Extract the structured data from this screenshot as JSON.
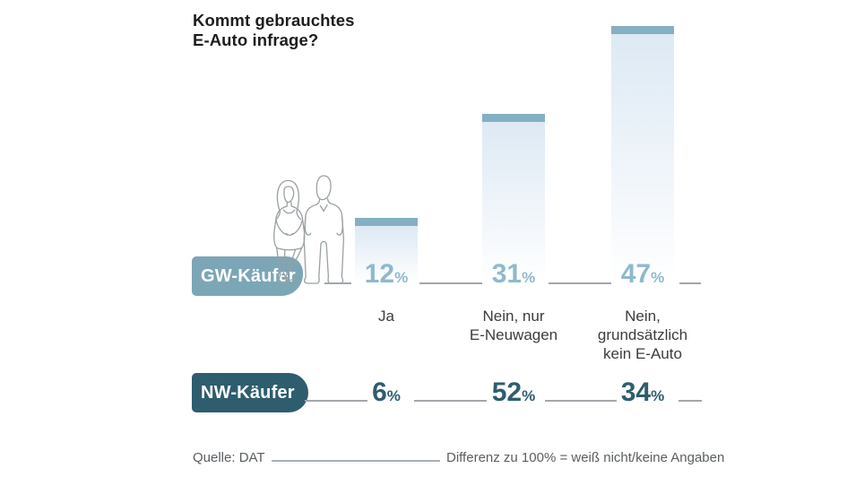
{
  "header": {
    "title_lines": [
      "Kommt gebrauchtes",
      "E-Auto infrage?"
    ]
  },
  "chart_data": {
    "type": "bar",
    "title": "Kommt gebrauchtes E-Auto infrage?",
    "categories": [
      "Ja",
      "Nein, nur E-Neuwagen",
      "Nein, grundsätzlich kein E-Auto"
    ],
    "series": [
      {
        "name": "GW-Käufer",
        "values": [
          12,
          31,
          47
        ]
      },
      {
        "name": "NW-Käufer",
        "values": [
          6,
          52,
          34
        ]
      }
    ],
    "unit": "%",
    "ylim": [
      0,
      50
    ],
    "grid": false,
    "legend_position": "row-labels-left",
    "source": "Quelle: DAT",
    "note": "Differenz zu 100% = weiß nicht/keine Angaben"
  },
  "rows": {
    "gw": {
      "label": "GW-Käufer",
      "values": [
        {
          "number": "12",
          "unit": "%"
        },
        {
          "number": "31",
          "unit": "%"
        },
        {
          "number": "47",
          "unit": "%"
        }
      ]
    },
    "nw": {
      "label": "NW-Käufer",
      "values": [
        {
          "number": "6",
          "unit": "%"
        },
        {
          "number": "52",
          "unit": "%"
        },
        {
          "number": "34",
          "unit": "%"
        }
      ]
    }
  },
  "categories": [
    {
      "lines": [
        "Ja",
        "",
        ""
      ]
    },
    {
      "lines": [
        "Nein, nur",
        "E-Neuwagen",
        ""
      ]
    },
    {
      "lines": [
        "Nein,",
        "grundsätzlich",
        "kein E-Auto"
      ]
    }
  ],
  "footer": {
    "source": "Quelle: DAT",
    "note": "Differenz zu 100% = weiß nicht/keine Angaben"
  },
  "colors": {
    "bar_cap": "#85afc2",
    "bar_body_top": "#dde9f4",
    "gw_pill": "#7ba6b6",
    "gw_value": "#8fb9cb",
    "nw_pill": "#2e5d6e",
    "nw_value": "#2e5d6e",
    "line": "#a2a7ab",
    "title_text": "#1d1d1b",
    "label_text": "#3c3c3b",
    "footer_text": "#5a5e61"
  },
  "illustration": "couple-line-drawing"
}
